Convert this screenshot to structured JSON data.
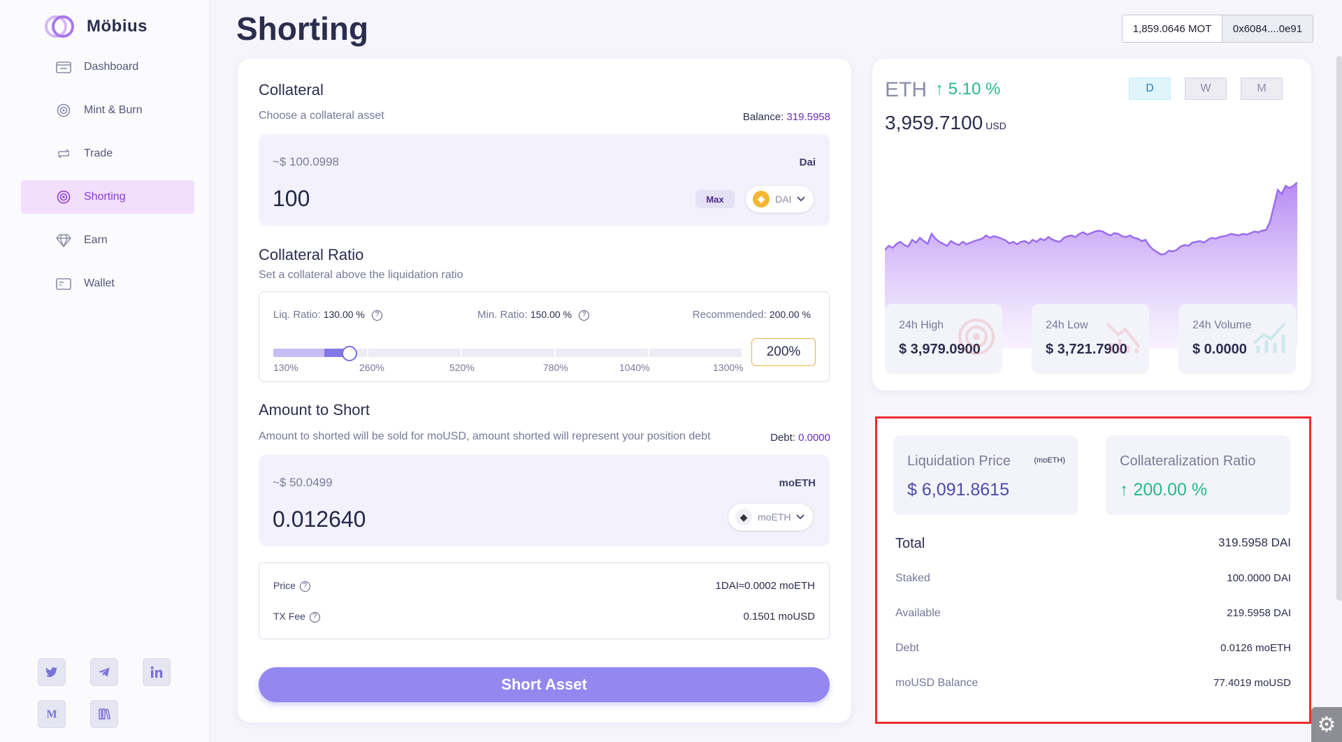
{
  "app": {
    "name": "Möbius"
  },
  "sidebar": {
    "items": [
      {
        "label": "Dashboard",
        "icon": "dashboard-icon"
      },
      {
        "label": "Mint & Burn",
        "icon": "mint-burn-icon"
      },
      {
        "label": "Trade",
        "icon": "trade-icon"
      },
      {
        "label": "Shorting",
        "icon": "target-icon",
        "active": true
      },
      {
        "label": "Earn",
        "icon": "diamond-icon"
      },
      {
        "label": "Wallet",
        "icon": "wallet-icon"
      }
    ],
    "socials": [
      "twitter-icon",
      "telegram-icon",
      "linkedin-icon",
      "medium-icon",
      "docs-icon"
    ]
  },
  "header": {
    "title": "Shorting",
    "mot_balance": "1,859.0646 MOT",
    "address": "0x6084....0e91"
  },
  "collateral": {
    "title": "Collateral",
    "subtitle": "Choose a collateral asset",
    "balance_label": "Balance:",
    "balance_value": "319.5958",
    "approx": "~$ 100.0998",
    "asset_label": "Dai",
    "amount": "100",
    "max_label": "Max",
    "token": "DAI"
  },
  "ratio": {
    "title": "Collateral Ratio",
    "subtitle": "Set a collateral above the liquidation ratio",
    "liq_label": "Liq. Ratio:",
    "liq_value": "130.00 %",
    "min_label": "Min. Ratio:",
    "min_value": "150.00 %",
    "rec_label": "Recommended:",
    "rec_value": "200.00 %",
    "ticks": [
      "130%",
      "260%",
      "520%",
      "780%",
      "1040%",
      "1300%"
    ],
    "input_value": "200%"
  },
  "short": {
    "title": "Amount to Short",
    "subtitle": "Amount to shorted will be sold for moUSD, amount shorted will represent your position debt",
    "debt_label": "Debt:",
    "debt_value": "0.0000",
    "approx": "~$ 50.0499",
    "asset_label": "moETH",
    "amount": "0.012640",
    "token": "moETH"
  },
  "summary": {
    "price_label": "Price",
    "price_value": "1DAI≈0.0002 moETH",
    "fee_label": "TX Fee",
    "fee_value": "0.1501 moUSD"
  },
  "action": {
    "label": "Short Asset"
  },
  "market": {
    "symbol": "ETH",
    "change": "↑ 5.10 %",
    "price": "3,959.7100",
    "currency": "USD",
    "timeframes": [
      "D",
      "W",
      "M"
    ],
    "high_label": "24h High",
    "high_value": "$ 3,979.0900",
    "low_label": "24h Low",
    "low_value": "$ 3,721.7900",
    "volume_label": "24h Volume",
    "volume_value": "$ 0.0000",
    "colors": {
      "line": "#9b6cf0",
      "fill": "#c9a8f7",
      "up": "#27b88a"
    }
  },
  "chart_data": {
    "type": "area",
    "title": "",
    "xlabel": "",
    "ylabel": "",
    "values": [
      3790,
      3800,
      3795,
      3805,
      3810,
      3802,
      3798,
      3815,
      3808,
      3820,
      3812,
      3805,
      3830,
      3818,
      3810,
      3805,
      3800,
      3812,
      3806,
      3802,
      3810,
      3804,
      3808,
      3812,
      3815,
      3818,
      3826,
      3820,
      3824,
      3822,
      3818,
      3814,
      3806,
      3810,
      3804,
      3810,
      3812,
      3806,
      3815,
      3810,
      3818,
      3814,
      3822,
      3816,
      3812,
      3810,
      3820,
      3824,
      3826,
      3822,
      3830,
      3834,
      3828,
      3832,
      3836,
      3838,
      3836,
      3830,
      3826,
      3832,
      3830,
      3824,
      3822,
      3826,
      3820,
      3818,
      3812,
      3815,
      3800,
      3790,
      3784,
      3778,
      3780,
      3788,
      3786,
      3790,
      3798,
      3802,
      3800,
      3808,
      3810,
      3812,
      3808,
      3815,
      3820,
      3818,
      3822,
      3824,
      3826,
      3830,
      3828,
      3826,
      3830,
      3828,
      3832,
      3836,
      3834,
      3838,
      3840,
      3860,
      3900,
      3940,
      3930,
      3950,
      3945,
      3950,
      3959
    ],
    "ylim": [
      3700,
      3980
    ]
  },
  "position": {
    "liq_price_label": "Liquidation Price",
    "liq_price_tag": "(moETH)",
    "liq_price_value": "$ 6,091.8615",
    "coll_ratio_label": "Collateralization Ratio",
    "coll_ratio_value": "↑ 200.00 %",
    "rows": [
      {
        "label": "Total",
        "value": "319.5958 DAI"
      },
      {
        "label": "Staked",
        "value": "100.0000 DAI"
      },
      {
        "label": "Available",
        "value": "219.5958 DAI"
      },
      {
        "label": "Debt",
        "value": "0.0126 moETH"
      },
      {
        "label": "moUSD Balance",
        "value": "77.4019 moUSD"
      }
    ]
  }
}
